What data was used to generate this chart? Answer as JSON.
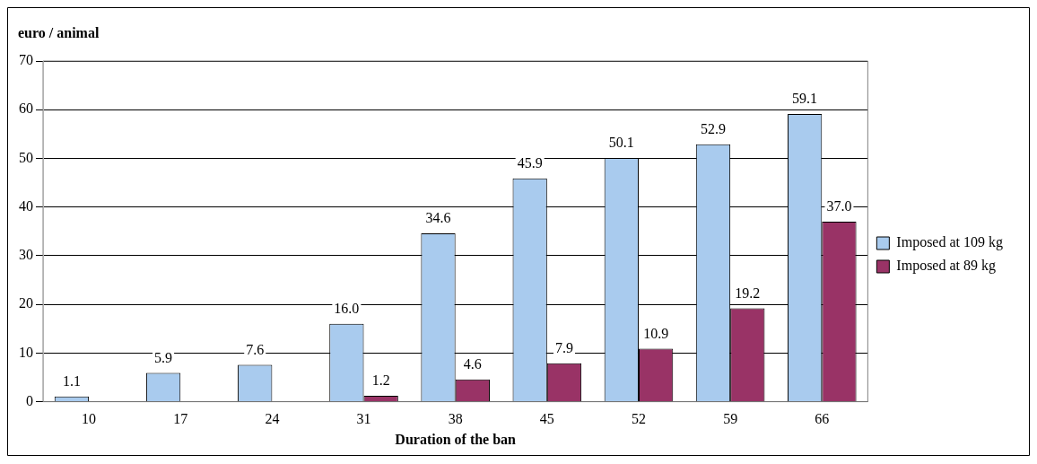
{
  "chart_data": {
    "type": "bar",
    "ylabel": "euro / animal",
    "xlabel": "Duration of the ban",
    "categories": [
      "10",
      "17",
      "24",
      "31",
      "38",
      "45",
      "52",
      "59",
      "66"
    ],
    "series": [
      {
        "name": "Imposed at 109 kg",
        "color": "#a9cbee",
        "values": [
          1.1,
          5.9,
          7.6,
          16.0,
          34.6,
          45.9,
          50.1,
          52.9,
          59.1
        ],
        "value_labels": [
          "1.1",
          "5.9",
          "7.6",
          "16.0",
          "34.6",
          "45.9",
          "50.1",
          "52.9",
          "59.1"
        ]
      },
      {
        "name": "Imposed at 89 kg",
        "color": "#993366",
        "values": [
          null,
          null,
          null,
          1.2,
          4.6,
          7.9,
          10.9,
          19.2,
          37.0
        ],
        "value_labels": [
          null,
          null,
          null,
          "1.2",
          "4.6",
          "7.9",
          "10.9",
          "19.2",
          "37.0"
        ]
      }
    ],
    "ylim": [
      0,
      70
    ],
    "yticks": [
      0,
      10,
      20,
      30,
      40,
      50,
      60,
      70
    ],
    "grid": "y",
    "legend": "right"
  }
}
